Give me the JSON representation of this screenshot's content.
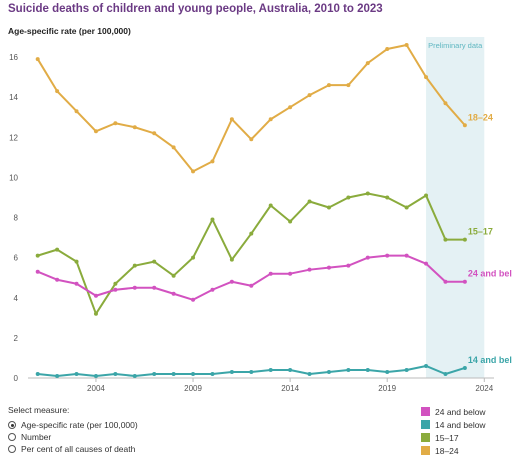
{
  "title": "Suicide deaths of children and young people, Australia, 2010 to 2023",
  "y_axis_title": "Age-specific rate (per 100,000)",
  "preliminary_label": "Preliminary data",
  "controls": {
    "heading": "Select measure:",
    "options": [
      {
        "label": "Age-specific rate (per 100,000)",
        "checked": true
      },
      {
        "label": "Number",
        "checked": false
      },
      {
        "label": "Per cent of all causes of death",
        "checked": false
      }
    ]
  },
  "legend": [
    {
      "label": "24 and below",
      "color": "#d252c0"
    },
    {
      "label": "14 and below",
      "color": "#3ba5a8"
    },
    {
      "label": "15–17",
      "color": "#8aab3c"
    },
    {
      "label": "18–24",
      "color": "#e1ac46"
    }
  ],
  "chart_data": {
    "type": "line",
    "title": "Suicide deaths of children and young people, Australia, 2010 to 2023",
    "ylabel": "Age-specific rate (per 100,000)",
    "x": [
      2001,
      2002,
      2003,
      2004,
      2005,
      2006,
      2007,
      2008,
      2009,
      2010,
      2011,
      2012,
      2013,
      2014,
      2015,
      2016,
      2017,
      2018,
      2019,
      2020,
      2021,
      2022,
      2023
    ],
    "xticks": [
      "2004",
      "2009",
      "2014",
      "2019",
      "2024"
    ],
    "xtick_values": [
      2004,
      2009,
      2014,
      2019,
      2024
    ],
    "xlim": [
      2000.5,
      2024.5
    ],
    "yticks": [
      0,
      2,
      4,
      6,
      8,
      10,
      12,
      14,
      16
    ],
    "ylim": [
      0,
      17
    ],
    "preliminary_range": [
      2021,
      2024
    ],
    "grid": false,
    "series": [
      {
        "name": "18–24",
        "color": "#e1ac46",
        "label": "18–24",
        "values": [
          15.9,
          14.3,
          13.3,
          12.3,
          12.7,
          12.5,
          12.2,
          11.5,
          10.3,
          10.8,
          12.9,
          11.9,
          12.9,
          13.5,
          14.1,
          14.6,
          14.6,
          15.7,
          16.4,
          16.6,
          15.0,
          13.7,
          12.6
        ]
      },
      {
        "name": "15–17",
        "color": "#8aab3c",
        "label": "15–17",
        "values": [
          6.1,
          6.4,
          5.8,
          3.2,
          4.7,
          5.6,
          5.8,
          5.1,
          6.0,
          7.9,
          5.9,
          7.2,
          8.6,
          7.8,
          8.8,
          8.5,
          9.0,
          9.2,
          9.0,
          8.5,
          9.1,
          6.9,
          6.9
        ]
      },
      {
        "name": "24 and below",
        "color": "#d252c0",
        "label": "24 and below",
        "values": [
          5.3,
          4.9,
          4.7,
          4.1,
          4.4,
          4.5,
          4.5,
          4.2,
          3.9,
          4.4,
          4.8,
          4.6,
          5.2,
          5.2,
          5.4,
          5.5,
          5.6,
          6.0,
          6.1,
          6.1,
          5.7,
          4.8,
          4.8
        ]
      },
      {
        "name": "14 and below",
        "color": "#3ba5a8",
        "label": "14 and below",
        "values": [
          0.2,
          0.1,
          0.2,
          0.1,
          0.2,
          0.1,
          0.2,
          0.2,
          0.2,
          0.2,
          0.3,
          0.3,
          0.4,
          0.4,
          0.2,
          0.3,
          0.4,
          0.4,
          0.3,
          0.4,
          0.6,
          0.2,
          0.5
        ]
      }
    ]
  }
}
